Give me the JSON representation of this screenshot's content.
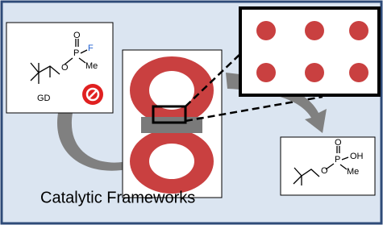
{
  "reactant": {
    "ester_oxygen": "O",
    "oxo_oxygen": "O",
    "phosphorus": "P",
    "fluorine": "F",
    "methyl": "Me",
    "label": "GD"
  },
  "product": {
    "ester_oxygen": "O",
    "oxo_oxygen": "O",
    "phosphorus": "P",
    "hydroxyl": "OH",
    "methyl": "Me"
  },
  "caption": "Catalytic Frameworks"
}
